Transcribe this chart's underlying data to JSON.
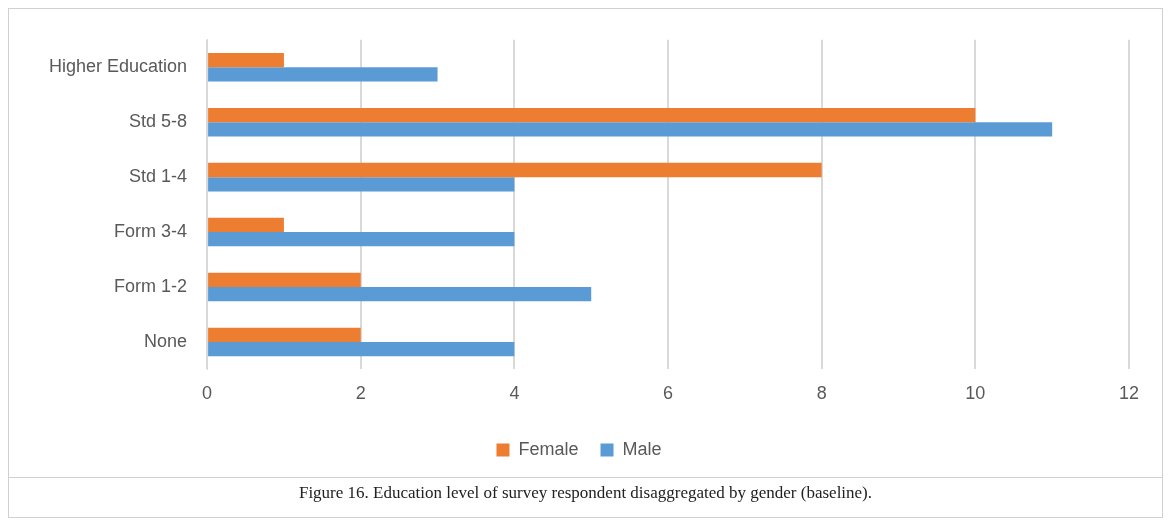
{
  "chart_data": {
    "type": "bar",
    "orientation": "horizontal",
    "categories": [
      "Higher Education",
      "Std 5-8",
      "Std 1-4",
      "Form 3-4",
      "Form 1-2",
      "None"
    ],
    "series": [
      {
        "name": "Female",
        "color": "#ed7d31",
        "values": [
          1,
          10,
          8,
          1,
          2,
          2
        ]
      },
      {
        "name": "Male",
        "color": "#5b9bd5",
        "values": [
          3,
          11,
          4,
          4,
          5,
          4
        ]
      }
    ],
    "xlim": [
      0,
      12
    ],
    "xticks": [
      0,
      2,
      4,
      6,
      8,
      10,
      12
    ],
    "grid": "x",
    "legend": "bottom",
    "annotations": [
      "Figure 16. Education level of survey respondent disaggregated by gender (baseline)."
    ]
  }
}
